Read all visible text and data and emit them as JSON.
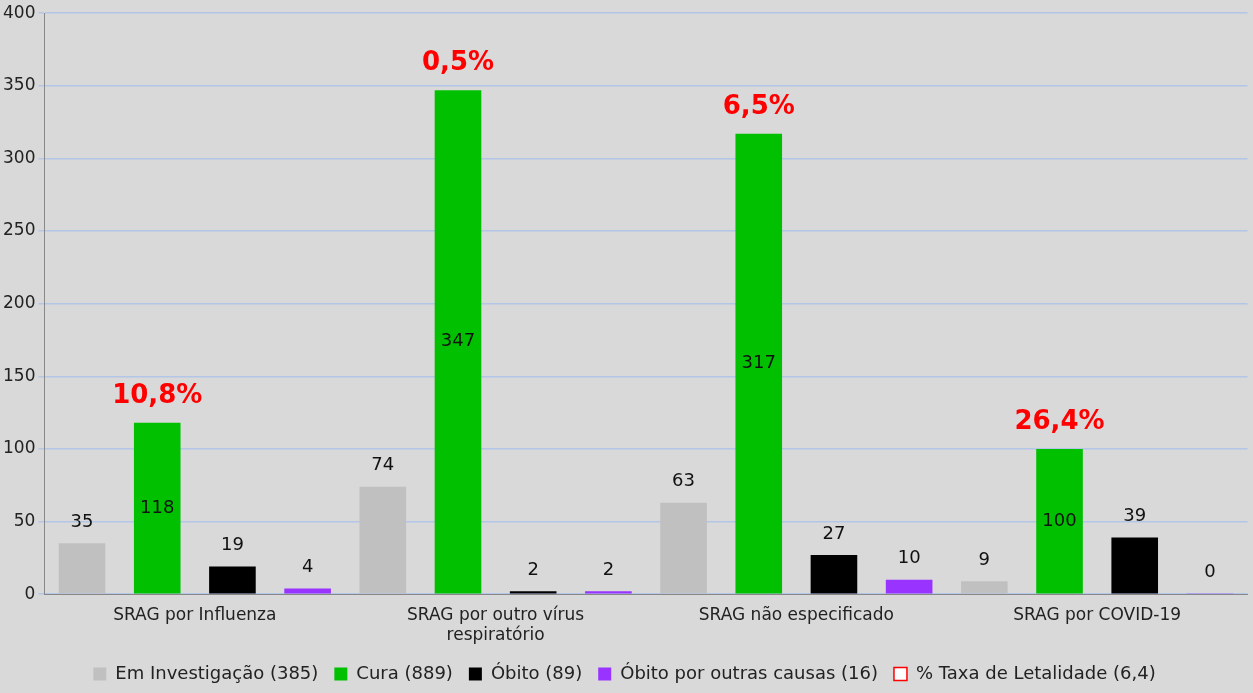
{
  "chart_data": {
    "type": "bar",
    "categories": [
      "SRAG por Influenza",
      "SRAG por outro vírus respiratório",
      "SRAG não especificado",
      "SRAG por COVID-19"
    ],
    "series": [
      {
        "name": "Em Investigação (385)",
        "color": "#c0c0c0",
        "values": [
          35,
          74,
          63,
          9
        ]
      },
      {
        "name": "Cura (889)",
        "color": "#00c000",
        "values": [
          118,
          347,
          317,
          100
        ]
      },
      {
        "name": "Óbito (89)",
        "color": "#000000",
        "values": [
          19,
          2,
          27,
          39
        ]
      },
      {
        "name": "Óbito por outras causas (16)",
        "color": "#9933ff",
        "values": [
          4,
          2,
          10,
          0
        ]
      },
      {
        "name": "% Taxa de Letalidade (6,4)",
        "color": "#ff0000",
        "type": "line",
        "values": [
          null,
          null,
          null,
          null
        ]
      }
    ],
    "data_labels": true,
    "annotations": [
      "10,8%",
      "0,5%",
      "6,5%",
      "26,4%"
    ],
    "ylim": [
      0,
      400
    ],
    "yticks": [
      0,
      50,
      100,
      150,
      200,
      250,
      300,
      350,
      400
    ],
    "grid": "y",
    "legend": "bottom"
  }
}
